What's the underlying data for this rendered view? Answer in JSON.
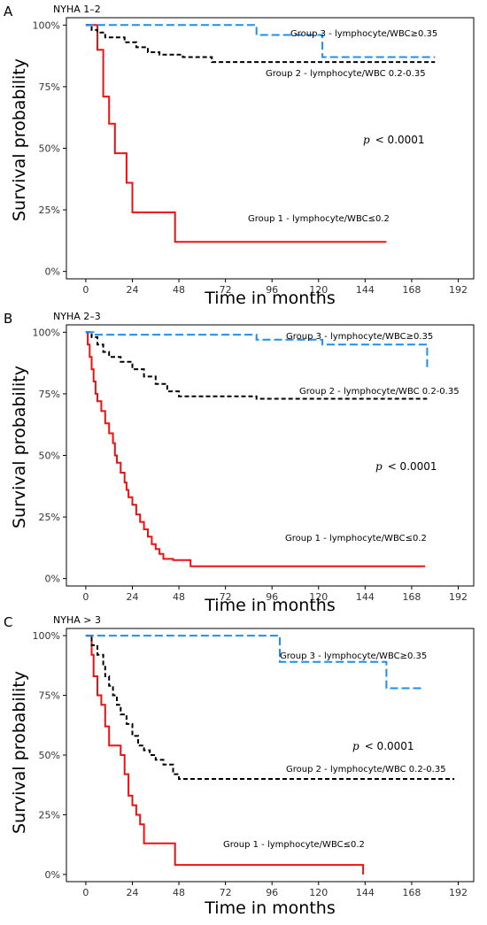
{
  "colors": {
    "group1": "#ee1111",
    "group2": "#000000",
    "group3": "#1f8ef1"
  },
  "chart_data": [
    {
      "type": "line",
      "panel": "A",
      "title": "NYHA 1–2",
      "xlabel": "Time in months",
      "ylabel": "Survival probability",
      "xlim": [
        -10,
        200
      ],
      "ylim": [
        -0.03,
        1.03
      ],
      "xticks": [
        0,
        24,
        48,
        72,
        96,
        120,
        144,
        168,
        192
      ],
      "xtick_labels": [
        "0",
        "24",
        "48",
        "72",
        "96",
        "120",
        "144",
        "168",
        "192"
      ],
      "yticks": [
        0,
        0.25,
        0.5,
        0.75,
        1
      ],
      "ytick_labels": [
        "0%",
        "25%",
        "50%",
        "75%",
        "100%"
      ],
      "p_label": "p",
      "p_value": "< 0.0001",
      "series": [
        {
          "name": "Group 1 - lymphocyte/WBC≤0.2",
          "color": "group1",
          "dash": "none",
          "x": [
            0,
            6,
            9,
            12,
            15,
            21,
            24,
            46,
            155
          ],
          "y": [
            1.0,
            0.9,
            0.71,
            0.6,
            0.48,
            0.36,
            0.24,
            0.12,
            0.12
          ]
        },
        {
          "name": "Group 2 - lymphocyte/WBC 0.2-0.35",
          "color": "group2",
          "dash": "dash",
          "x": [
            0,
            3,
            6,
            10,
            20,
            26,
            32,
            38,
            50,
            65,
            120,
            180
          ],
          "y": [
            1.0,
            0.98,
            0.97,
            0.95,
            0.93,
            0.91,
            0.89,
            0.88,
            0.87,
            0.85,
            0.85,
            0.85
          ]
        },
        {
          "name": "Group 3 - lymphocyte/WBC≥0.35",
          "color": "group3",
          "dash": "longdash",
          "x": [
            0,
            88,
            122,
            180
          ],
          "y": [
            1.0,
            0.96,
            0.87,
            0.87
          ]
        }
      ]
    },
    {
      "type": "line",
      "panel": "B",
      "title": "NYHA 2–3",
      "xlabel": "Time in months",
      "ylabel": "Survival probability",
      "xlim": [
        -10,
        200
      ],
      "ylim": [
        -0.03,
        1.03
      ],
      "xticks": [
        0,
        24,
        48,
        72,
        96,
        120,
        144,
        168,
        192
      ],
      "xtick_labels": [
        "0",
        "24",
        "48",
        "72",
        "96",
        "120",
        "144",
        "168",
        "192"
      ],
      "yticks": [
        0,
        0.25,
        0.5,
        0.75,
        1
      ],
      "ytick_labels": [
        "0%",
        "25%",
        "50%",
        "75%",
        "100%"
      ],
      "p_label": "p",
      "p_value": "< 0.0001",
      "series": [
        {
          "name": "Group 1 - lymphocyte/WBC≤0.2",
          "color": "group1",
          "dash": "none",
          "x": [
            0,
            1,
            2,
            3,
            4,
            5,
            6,
            8,
            10,
            12,
            14,
            15,
            16,
            18,
            20,
            21,
            22,
            24,
            26,
            28,
            30,
            32,
            34,
            36,
            38,
            40,
            45,
            54,
            175
          ],
          "y": [
            1.0,
            0.95,
            0.9,
            0.85,
            0.8,
            0.75,
            0.72,
            0.68,
            0.63,
            0.59,
            0.55,
            0.5,
            0.47,
            0.43,
            0.39,
            0.36,
            0.33,
            0.3,
            0.26,
            0.23,
            0.2,
            0.17,
            0.14,
            0.12,
            0.1,
            0.08,
            0.075,
            0.05,
            0.05
          ]
        },
        {
          "name": "Group 2 - lymphocyte/WBC 0.2-0.35",
          "color": "group2",
          "dash": "dash",
          "x": [
            0,
            3,
            6,
            9,
            12,
            18,
            24,
            30,
            36,
            42,
            48,
            60,
            70,
            88,
            176
          ],
          "y": [
            1.0,
            0.98,
            0.95,
            0.92,
            0.9,
            0.88,
            0.85,
            0.82,
            0.79,
            0.76,
            0.74,
            0.74,
            0.74,
            0.73,
            0.73
          ]
        },
        {
          "name": "Group 3 - lymphocyte/WBC≥0.35",
          "color": "group3",
          "dash": "longdash",
          "x": [
            0,
            4,
            88,
            122,
            174,
            176
          ],
          "y": [
            1.0,
            0.99,
            0.97,
            0.95,
            0.95,
            0.85
          ]
        }
      ]
    },
    {
      "type": "line",
      "panel": "C",
      "title": "NYHA > 3",
      "xlabel": "Time in months",
      "ylabel": "Survival probability",
      "xlim": [
        -10,
        200
      ],
      "ylim": [
        -0.03,
        1.03
      ],
      "xticks": [
        0,
        24,
        48,
        72,
        96,
        120,
        144,
        168,
        192
      ],
      "xtick_labels": [
        "0",
        "24",
        "48",
        "72",
        "96",
        "120",
        "144",
        "168",
        "192"
      ],
      "yticks": [
        0,
        0.25,
        0.5,
        0.75,
        1
      ],
      "ytick_labels": [
        "0%",
        "25%",
        "50%",
        "75%",
        "100%"
      ],
      "p_label": "p",
      "p_value": "< 0.0001",
      "series": [
        {
          "name": "Group 1 - lymphocyte/WBC≤0.2",
          "color": "group1",
          "dash": "none",
          "x": [
            0,
            3,
            4,
            6,
            8,
            10,
            12,
            18,
            20,
            22,
            24,
            26,
            28,
            30,
            36,
            46,
            142,
            143
          ],
          "y": [
            1.0,
            0.92,
            0.83,
            0.75,
            0.71,
            0.62,
            0.54,
            0.5,
            0.42,
            0.33,
            0.29,
            0.25,
            0.21,
            0.13,
            0.13,
            0.04,
            0.04,
            0.0
          ]
        },
        {
          "name": "Group 2 - lymphocyte/WBC 0.2-0.35",
          "color": "group2",
          "dash": "dash",
          "x": [
            0,
            3,
            6,
            9,
            10,
            12,
            14,
            16,
            18,
            21,
            24,
            27,
            30,
            33,
            36,
            40,
            45,
            48,
            190
          ],
          "y": [
            1.0,
            0.96,
            0.92,
            0.88,
            0.83,
            0.79,
            0.75,
            0.71,
            0.67,
            0.63,
            0.58,
            0.54,
            0.52,
            0.5,
            0.48,
            0.46,
            0.42,
            0.4,
            0.4
          ]
        },
        {
          "name": "Group 3 - lymphocyte/WBC≥0.35",
          "color": "group3",
          "dash": "longdash",
          "x": [
            0,
            5,
            100,
            155,
            173
          ],
          "y": [
            1.0,
            1.0,
            0.89,
            0.78,
            0.78
          ]
        }
      ]
    }
  ]
}
